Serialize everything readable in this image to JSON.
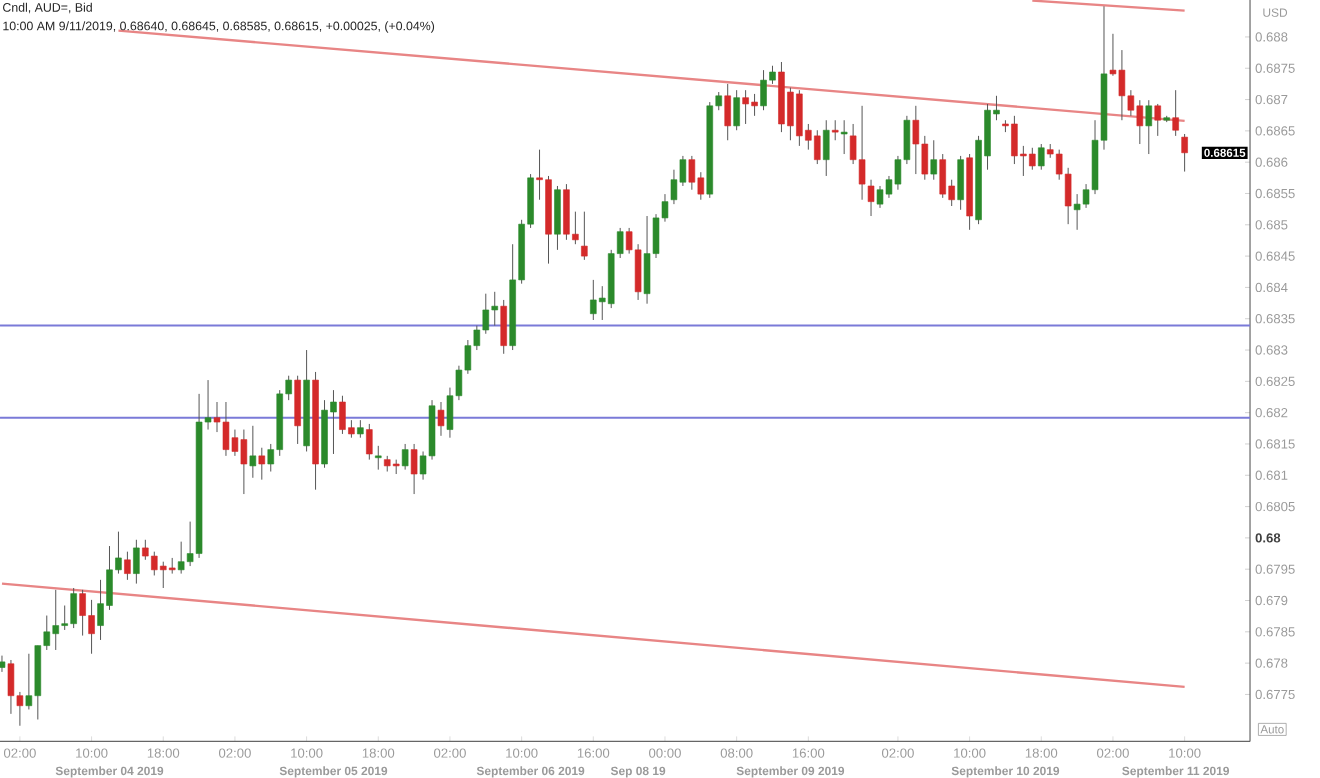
{
  "chart_data": {
    "type": "candlestick",
    "title": "Cndl, AUD=, Bid",
    "subtitle": "10:00 AM 9/11/2019, 0.68640, 0.68645, 0.68585, 0.68615, +0.00025, (+0.04%)",
    "ylabel": "USD",
    "categories": [
      null,
      null,
      "02:00",
      null,
      null,
      null,
      null,
      null,
      null,
      null,
      "10:00",
      null,
      null,
      null,
      null,
      null,
      null,
      null,
      "18:00",
      null,
      null,
      null,
      null,
      null,
      null,
      null,
      "02:00",
      null,
      null,
      null,
      null,
      null,
      null,
      null,
      "10:00",
      null,
      null,
      null,
      null,
      null,
      null,
      null,
      "18:00",
      null,
      null,
      null,
      null,
      null,
      null,
      null,
      "02:00",
      null,
      null,
      null,
      null,
      null,
      null,
      null,
      "10:00",
      null,
      null,
      null,
      null,
      null,
      null,
      null,
      "16:00",
      null,
      null,
      null,
      null,
      null,
      null,
      null,
      "00:00",
      null,
      null,
      null,
      null,
      null,
      null,
      null,
      "08:00",
      null,
      null,
      null,
      null,
      null,
      null,
      null,
      "16:00",
      null,
      null,
      null,
      null,
      null,
      null,
      null,
      null,
      null,
      "02:00",
      null,
      null,
      null,
      null,
      null,
      null,
      null,
      "10:00",
      null,
      null,
      null,
      null,
      null,
      null,
      null,
      "18:00",
      null,
      null,
      null,
      null,
      null,
      null,
      null,
      "02:00",
      null,
      null,
      null,
      null,
      null,
      null,
      null,
      "10:00"
    ],
    "ohlc": [
      [
        0.67793,
        0.67812,
        0.67786,
        0.67802
      ],
      [
        0.67799,
        0.67805,
        0.67719,
        0.67748
      ],
      [
        0.67748,
        0.67754,
        0.677,
        0.67732
      ],
      [
        0.67732,
        0.67815,
        0.67726,
        0.67748
      ],
      [
        0.67748,
        0.67828,
        0.6771,
        0.67828
      ],
      [
        0.67828,
        0.67876,
        0.67821,
        0.6785
      ],
      [
        0.67847,
        0.67917,
        0.67821,
        0.6786
      ],
      [
        0.6786,
        0.67892,
        0.67853,
        0.67863
      ],
      [
        0.67863,
        0.6792,
        0.67856,
        0.67911
      ],
      [
        0.67911,
        0.67917,
        0.67844,
        0.67876
      ],
      [
        0.67876,
        0.67901,
        0.67815,
        0.67847
      ],
      [
        0.6786,
        0.67933,
        0.67837,
        0.67895
      ],
      [
        0.67892,
        0.67987,
        0.67885,
        0.67949
      ],
      [
        0.67949,
        0.6801,
        0.67943,
        0.67968
      ],
      [
        0.67965,
        0.67978,
        0.67933,
        0.67943
      ],
      [
        0.67943,
        0.67997,
        0.67927,
        0.67984
      ],
      [
        0.67984,
        0.67997,
        0.67965,
        0.67971
      ],
      [
        0.67971,
        0.67978,
        0.6794,
        0.67949
      ],
      [
        0.67955,
        0.67962,
        0.6792,
        0.67949
      ],
      [
        0.67952,
        0.67968,
        0.67943,
        0.67949
      ],
      [
        0.67949,
        0.67994,
        0.67943,
        0.67962
      ],
      [
        0.67962,
        0.68026,
        0.67955,
        0.67975
      ],
      [
        0.67975,
        0.6823,
        0.67968,
        0.68185
      ],
      [
        0.68185,
        0.68252,
        0.68173,
        0.68192
      ],
      [
        0.68192,
        0.68217,
        0.68169,
        0.68185
      ],
      [
        0.68185,
        0.68217,
        0.68131,
        0.68141
      ],
      [
        0.6816,
        0.68173,
        0.68131,
        0.68138
      ],
      [
        0.68157,
        0.68173,
        0.6807,
        0.68118
      ],
      [
        0.68115,
        0.68179,
        0.68096,
        0.68131
      ],
      [
        0.68131,
        0.68144,
        0.68093,
        0.68118
      ],
      [
        0.68118,
        0.6815,
        0.68106,
        0.68141
      ],
      [
        0.68141,
        0.68236,
        0.68131,
        0.6823
      ],
      [
        0.6823,
        0.68259,
        0.6822,
        0.68252
      ],
      [
        0.68252,
        0.68259,
        0.6815,
        0.68179
      ],
      [
        0.68147,
        0.683,
        0.68138,
        0.68252
      ],
      [
        0.68252,
        0.68265,
        0.68077,
        0.68118
      ],
      [
        0.68118,
        0.6822,
        0.68112,
        0.68204
      ],
      [
        0.68201,
        0.68236,
        0.68134,
        0.68217
      ],
      [
        0.68217,
        0.68227,
        0.68166,
        0.68173
      ],
      [
        0.68176,
        0.68188,
        0.6816,
        0.68166
      ],
      [
        0.68166,
        0.68188,
        0.6816,
        0.68176
      ],
      [
        0.68173,
        0.68182,
        0.68125,
        0.68134
      ],
      [
        0.68128,
        0.68147,
        0.68109,
        0.68131
      ],
      [
        0.68125,
        0.68131,
        0.68106,
        0.68115
      ],
      [
        0.68118,
        0.68125,
        0.68102,
        0.68115
      ],
      [
        0.68115,
        0.6815,
        0.68109,
        0.68141
      ],
      [
        0.68141,
        0.6815,
        0.6807,
        0.68102
      ],
      [
        0.68102,
        0.68138,
        0.68093,
        0.68131
      ],
      [
        0.68131,
        0.6822,
        0.68125,
        0.68211
      ],
      [
        0.68204,
        0.68217,
        0.68163,
        0.68179
      ],
      [
        0.68173,
        0.6824,
        0.6816,
        0.68227
      ],
      [
        0.68227,
        0.68275,
        0.6822,
        0.68268
      ],
      [
        0.68268,
        0.68316,
        0.68262,
        0.68307
      ],
      [
        0.68307,
        0.68339,
        0.683,
        0.68332
      ],
      [
        0.68332,
        0.6839,
        0.68326,
        0.68364
      ],
      [
        0.68364,
        0.68393,
        0.68339,
        0.6837
      ],
      [
        0.6837,
        0.6838,
        0.68294,
        0.68307
      ],
      [
        0.68307,
        0.68469,
        0.683,
        0.68412
      ],
      [
        0.68412,
        0.68508,
        0.68406,
        0.68501
      ],
      [
        0.68501,
        0.68581,
        0.68495,
        0.68575
      ],
      [
        0.68575,
        0.6862,
        0.6854,
        0.68572
      ],
      [
        0.68572,
        0.68578,
        0.68438,
        0.68485
      ],
      [
        0.68485,
        0.68562,
        0.6846,
        0.68556
      ],
      [
        0.68556,
        0.68565,
        0.68476,
        0.68485
      ],
      [
        0.68485,
        0.68521,
        0.68469,
        0.68476
      ],
      [
        0.68466,
        0.68521,
        0.68444,
        0.6845
      ],
      [
        0.68358,
        0.68412,
        0.68348,
        0.6838
      ],
      [
        0.68377,
        0.68402,
        0.68348,
        0.68383
      ],
      [
        0.68374,
        0.6846,
        0.68367,
        0.68454
      ],
      [
        0.68454,
        0.68495,
        0.68447,
        0.68489
      ],
      [
        0.68489,
        0.68495,
        0.68454,
        0.6846
      ],
      [
        0.6846,
        0.68469,
        0.6838,
        0.68393
      ],
      [
        0.6839,
        0.68514,
        0.68374,
        0.68454
      ],
      [
        0.68454,
        0.68517,
        0.68447,
        0.68511
      ],
      [
        0.68511,
        0.68549,
        0.68505,
        0.68537
      ],
      [
        0.6854,
        0.68588,
        0.68533,
        0.68572
      ],
      [
        0.68568,
        0.6861,
        0.68562,
        0.68604
      ],
      [
        0.68604,
        0.6861,
        0.68556,
        0.68568
      ],
      [
        0.68575,
        0.68584,
        0.6854,
        0.68549
      ],
      [
        0.68549,
        0.68696,
        0.68543,
        0.6869
      ],
      [
        0.6869,
        0.68712,
        0.68683,
        0.68706
      ],
      [
        0.68706,
        0.68725,
        0.68635,
        0.68658
      ],
      [
        0.68658,
        0.68715,
        0.68651,
        0.68703
      ],
      [
        0.68703,
        0.68715,
        0.68661,
        0.68693
      ],
      [
        0.68696,
        0.68709,
        0.68674,
        0.6869
      ],
      [
        0.6869,
        0.68747,
        0.68683,
        0.68731
      ],
      [
        0.68731,
        0.68754,
        0.68725,
        0.68744
      ],
      [
        0.68744,
        0.6876,
        0.68648,
        0.68661
      ],
      [
        0.68712,
        0.68719,
        0.68635,
        0.68658
      ],
      [
        0.68709,
        0.68715,
        0.68626,
        0.68642
      ],
      [
        0.68651,
        0.68661,
        0.6862,
        0.68635
      ],
      [
        0.68642,
        0.68651,
        0.68597,
        0.68604
      ],
      [
        0.68604,
        0.68667,
        0.68578,
        0.68651
      ],
      [
        0.68651,
        0.68667,
        0.68635,
        0.68648
      ],
      [
        0.68645,
        0.68667,
        0.68613,
        0.68648
      ],
      [
        0.68642,
        0.68661,
        0.68597,
        0.68604
      ],
      [
        0.68604,
        0.6869,
        0.6854,
        0.68565
      ],
      [
        0.68562,
        0.68572,
        0.68514,
        0.68537
      ],
      [
        0.68533,
        0.68562,
        0.68527,
        0.68556
      ],
      [
        0.68549,
        0.68578,
        0.68543,
        0.68572
      ],
      [
        0.68565,
        0.6861,
        0.68556,
        0.68604
      ],
      [
        0.68604,
        0.68674,
        0.68597,
        0.68667
      ],
      [
        0.68667,
        0.6869,
        0.68581,
        0.68629
      ],
      [
        0.68629,
        0.68642,
        0.68572,
        0.68581
      ],
      [
        0.68581,
        0.68635,
        0.68572,
        0.68604
      ],
      [
        0.68604,
        0.68613,
        0.68543,
        0.68549
      ],
      [
        0.68562,
        0.68572,
        0.6853,
        0.6854
      ],
      [
        0.6854,
        0.6861,
        0.68524,
        0.68604
      ],
      [
        0.68607,
        0.68613,
        0.68492,
        0.68514
      ],
      [
        0.68508,
        0.68642,
        0.68501,
        0.68635
      ],
      [
        0.6861,
        0.68693,
        0.68588,
        0.68683
      ],
      [
        0.68677,
        0.68706,
        0.68667,
        0.68683
      ],
      [
        0.68661,
        0.68667,
        0.68648,
        0.68658
      ],
      [
        0.68661,
        0.68674,
        0.68597,
        0.6861
      ],
      [
        0.68613,
        0.68626,
        0.68578,
        0.6861
      ],
      [
        0.68613,
        0.68623,
        0.68588,
        0.68594
      ],
      [
        0.68594,
        0.68629,
        0.68588,
        0.68623
      ],
      [
        0.6862,
        0.68629,
        0.68607,
        0.68613
      ],
      [
        0.68613,
        0.6862,
        0.68572,
        0.68581
      ],
      [
        0.68581,
        0.68591,
        0.68501,
        0.6853
      ],
      [
        0.68524,
        0.68549,
        0.68492,
        0.68533
      ],
      [
        0.68533,
        0.68565,
        0.68527,
        0.68556
      ],
      [
        0.68556,
        0.68667,
        0.68549,
        0.68635
      ],
      [
        0.68635,
        0.68849,
        0.6862,
        0.68741
      ],
      [
        0.68747,
        0.68805,
        0.68738,
        0.68741
      ],
      [
        0.68747,
        0.68779,
        0.68667,
        0.68706
      ],
      [
        0.68706,
        0.68715,
        0.68674,
        0.68683
      ],
      [
        0.6869,
        0.68699,
        0.68629,
        0.68658
      ],
      [
        0.68658,
        0.68699,
        0.68613,
        0.6869
      ],
      [
        0.6869,
        0.68693,
        0.68642,
        0.68667
      ],
      [
        0.68667,
        0.68674,
        0.68664,
        0.68671
      ],
      [
        0.68671,
        0.68715,
        0.68642,
        0.68651
      ],
      [
        0.6864,
        0.68645,
        0.68585,
        0.68615
      ]
    ],
    "colors": [
      "#2b8a2b",
      "#d42a2a",
      "#d42a2a",
      "#2b8a2b",
      "#2b8a2b",
      "#2b8a2b",
      "#2b8a2b",
      "#2b8a2b",
      "#2b8a2b",
      "#d42a2a",
      "#d42a2a",
      "#2b8a2b",
      "#2b8a2b",
      "#2b8a2b",
      "#d42a2a",
      "#2b8a2b",
      "#d42a2a",
      "#d42a2a",
      "#d42a2a",
      "#d42a2a",
      "#2b8a2b",
      "#2b8a2b",
      "#2b8a2b",
      "#2b8a2b",
      "#d42a2a",
      "#d42a2a",
      "#d42a2a",
      "#d42a2a",
      "#2b8a2b",
      "#d42a2a",
      "#2b8a2b",
      "#2b8a2b",
      "#2b8a2b",
      "#d42a2a",
      "#2b8a2b",
      "#d42a2a",
      "#2b8a2b",
      "#2b8a2b",
      "#d42a2a",
      "#d42a2a",
      "#2b8a2b",
      "#d42a2a",
      "#2b8a2b",
      "#d42a2a",
      "#d42a2a",
      "#2b8a2b",
      "#d42a2a",
      "#2b8a2b",
      "#2b8a2b",
      "#d42a2a",
      "#2b8a2b",
      "#2b8a2b",
      "#2b8a2b",
      "#2b8a2b",
      "#2b8a2b",
      "#2b8a2b",
      "#d42a2a",
      "#2b8a2b",
      "#2b8a2b",
      "#2b8a2b",
      "#d42a2a",
      "#d42a2a",
      "#2b8a2b",
      "#d42a2a",
      "#d42a2a",
      "#d42a2a",
      "#2b8a2b",
      "#2b8a2b",
      "#2b8a2b",
      "#2b8a2b",
      "#d42a2a",
      "#d42a2a",
      "#2b8a2b",
      "#2b8a2b",
      "#2b8a2b",
      "#2b8a2b",
      "#2b8a2b",
      "#d42a2a",
      "#d42a2a",
      "#2b8a2b",
      "#2b8a2b",
      "#d42a2a",
      "#2b8a2b",
      "#d42a2a",
      "#d42a2a",
      "#2b8a2b",
      "#2b8a2b",
      "#d42a2a",
      "#d42a2a",
      "#d42a2a",
      "#d42a2a",
      "#d42a2a",
      "#2b8a2b",
      "#d42a2a",
      "#2b8a2b",
      "#d42a2a",
      "#d42a2a",
      "#d42a2a",
      "#2b8a2b",
      "#2b8a2b",
      "#2b8a2b",
      "#2b8a2b",
      "#d42a2a",
      "#d42a2a",
      "#2b8a2b",
      "#d42a2a",
      "#d42a2a",
      "#2b8a2b",
      "#d42a2a",
      "#2b8a2b",
      "#2b8a2b",
      "#2b8a2b",
      "#d42a2a",
      "#d42a2a",
      "#d42a2a",
      "#d42a2a",
      "#2b8a2b",
      "#d42a2a",
      "#d42a2a",
      "#d42a2a",
      "#2b8a2b",
      "#2b8a2b",
      "#2b8a2b",
      "#2b8a2b",
      "#d42a2a",
      "#d42a2a",
      "#d42a2a",
      "#d42a2a",
      "#2b8a2b",
      "#d42a2a",
      "#2b8a2b",
      "#d42a2a",
      "#d42a2a"
    ],
    "series": [
      {
        "type": "line",
        "color": "#e88585",
        "values": [
          null,
          null,
          null,
          null,
          null,
          null,
          null,
          null,
          null,
          null,
          null,
          null,
          null,
          0.6881,
          null,
          null,
          null,
          null,
          null,
          null,
          null,
          null,
          null,
          null,
          null,
          null,
          null,
          null,
          null,
          null,
          null,
          null,
          null,
          null,
          null,
          null,
          null,
          null,
          null,
          null,
          null,
          null,
          null,
          null,
          null,
          null,
          null,
          null,
          null,
          null,
          null,
          null,
          null,
          null,
          null,
          null,
          null,
          null,
          null,
          null,
          null,
          null,
          null,
          null,
          null,
          null,
          null,
          null,
          null,
          null,
          null,
          null,
          null,
          null,
          null,
          null,
          null,
          null,
          null,
          null,
          null,
          null,
          null,
          null,
          null,
          null,
          null,
          null,
          null,
          null,
          null,
          null,
          null,
          null,
          null,
          null,
          null,
          null,
          null,
          null,
          null,
          null,
          null,
          null,
          null,
          null,
          null,
          null,
          null,
          null,
          null,
          null,
          null,
          null,
          null,
          null,
          null,
          null,
          null,
          null,
          null,
          null,
          null,
          null,
          null,
          null,
          null,
          null,
          null,
          null,
          null,
          null,
          0.68666
        ]
      },
      {
        "type": "line",
        "color": "#e88585",
        "values": [
          null,
          null,
          null,
          null,
          null,
          null,
          null,
          null,
          null,
          null,
          null,
          null,
          null,
          null,
          null,
          null,
          null,
          null,
          null,
          null,
          null,
          null,
          null,
          null,
          null,
          null,
          null,
          null,
          null,
          null,
          null,
          null,
          null,
          null,
          null,
          null,
          null,
          null,
          null,
          null,
          null,
          null,
          null,
          null,
          null,
          null,
          null,
          null,
          null,
          null,
          null,
          null,
          null,
          null,
          null,
          null,
          null,
          null,
          null,
          null,
          null,
          null,
          null,
          null,
          null,
          null,
          null,
          null,
          null,
          null,
          null,
          null,
          null,
          null,
          null,
          null,
          null,
          null,
          null,
          null,
          null,
          null,
          null,
          null,
          null,
          null,
          null,
          null,
          null,
          null,
          null,
          null,
          null,
          null,
          null,
          null,
          null,
          null,
          null,
          null,
          null,
          null,
          null,
          null,
          null,
          null,
          null,
          null,
          null,
          null,
          null,
          null,
          null,
          null,
          null,
          0.68858,
          null,
          null,
          null,
          null,
          null,
          null,
          null,
          null,
          null,
          null,
          null,
          null,
          null,
          null,
          null,
          null,
          0.68842
        ]
      },
      {
        "type": "line",
        "color": "#e88585",
        "values": [
          0.67927,
          null,
          null,
          null,
          null,
          null,
          null,
          null,
          null,
          null,
          null,
          null,
          null,
          null,
          null,
          null,
          null,
          null,
          null,
          null,
          null,
          null,
          null,
          null,
          null,
          null,
          null,
          null,
          null,
          null,
          null,
          null,
          null,
          null,
          null,
          null,
          null,
          null,
          null,
          null,
          null,
          null,
          null,
          null,
          null,
          null,
          null,
          null,
          null,
          null,
          null,
          null,
          null,
          null,
          null,
          null,
          null,
          null,
          null,
          null,
          null,
          null,
          null,
          null,
          null,
          null,
          null,
          null,
          null,
          null,
          null,
          null,
          null,
          null,
          null,
          null,
          null,
          null,
          null,
          null,
          null,
          null,
          null,
          null,
          null,
          null,
          null,
          null,
          null,
          null,
          null,
          null,
          null,
          null,
          null,
          null,
          null,
          null,
          null,
          null,
          null,
          null,
          null,
          null,
          null,
          null,
          null,
          null,
          null,
          null,
          null,
          null,
          null,
          null,
          null,
          null,
          null,
          null,
          null,
          null,
          null,
          null,
          null,
          null,
          null,
          null,
          null,
          null,
          null,
          null,
          null,
          null,
          0.67762
        ]
      }
    ],
    "ref_lines": [
      {
        "axis": "y",
        "value": 0.68339,
        "color": "#7a7ad8"
      },
      {
        "axis": "y",
        "value": 0.68192,
        "color": "#7a7ad8"
      }
    ],
    "ylim": [
      0.67675,
      0.68859
    ],
    "yticks": [
      {
        "value": 0.6775,
        "label": "0.6775"
      },
      {
        "value": 0.678,
        "label": "0.678"
      },
      {
        "value": 0.6785,
        "label": "0.6785"
      },
      {
        "value": 0.679,
        "label": "0.679"
      },
      {
        "value": 0.6795,
        "label": "0.6795"
      },
      {
        "value": 0.68,
        "label": "0.68"
      },
      {
        "value": 0.6805,
        "label": "0.6805"
      },
      {
        "value": 0.681,
        "label": "0.681"
      },
      {
        "value": 0.6815,
        "label": "0.6815"
      },
      {
        "value": 0.682,
        "label": "0.682"
      },
      {
        "value": 0.6825,
        "label": "0.6825"
      },
      {
        "value": 0.683,
        "label": "0.683"
      },
      {
        "value": 0.6835,
        "label": "0.6835"
      },
      {
        "value": 0.684,
        "label": "0.684"
      },
      {
        "value": 0.6845,
        "label": "0.6845"
      },
      {
        "value": 0.685,
        "label": "0.685"
      },
      {
        "value": 0.6855,
        "label": "0.6855"
      },
      {
        "value": 0.686,
        "label": "0.686"
      },
      {
        "value": 0.6865,
        "label": "0.6865"
      },
      {
        "value": 0.687,
        "label": "0.687"
      },
      {
        "value": 0.6875,
        "label": "0.6875"
      },
      {
        "value": 0.688,
        "label": "0.688"
      }
    ],
    "annotations": [
      "September 04 2019",
      "September 05 2019",
      "September 06 2019",
      "Sep 08 19",
      "September 09 2019",
      "September 10 2019",
      "September 11 2019",
      "Auto",
      "0.68615"
    ]
  }
}
